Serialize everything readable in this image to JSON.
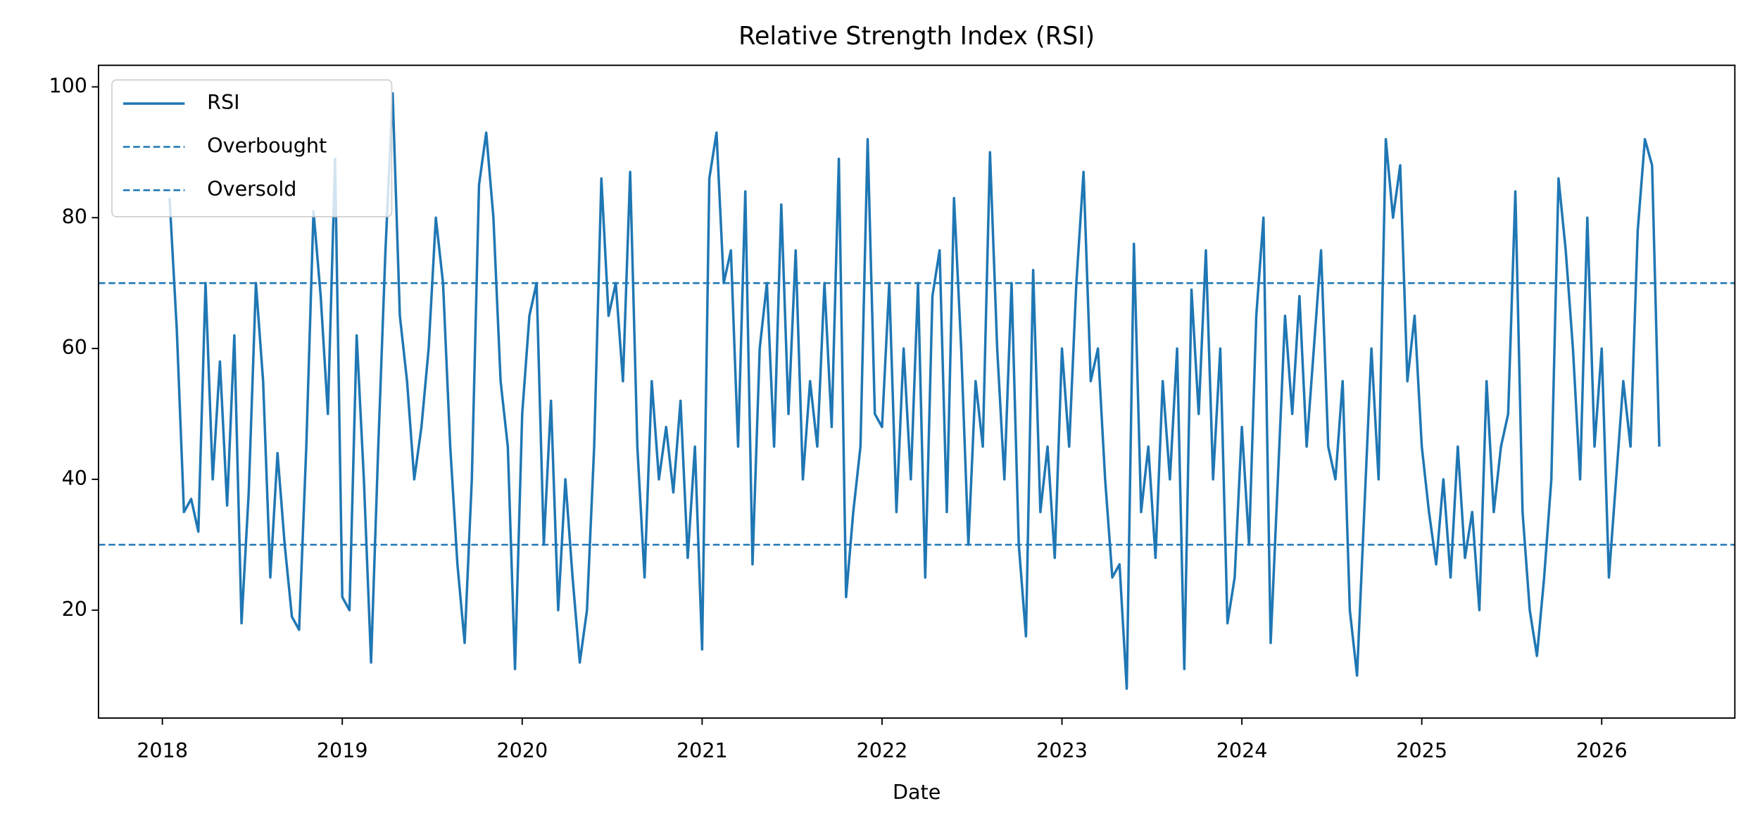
{
  "chart_data": {
    "type": "line",
    "title": "Relative Strength Index (RSI)",
    "xlabel": "Date",
    "legend": "upper left",
    "grid": false,
    "xlim": [
      2017.645,
      2026.74
    ],
    "ylim": [
      3.5,
      103.3
    ],
    "xticks": [
      2018,
      2019,
      2020,
      2021,
      2022,
      2023,
      2024,
      2025,
      2026
    ],
    "yticks": [
      20,
      40,
      60,
      80,
      100
    ],
    "hlines": [
      {
        "name": "Overbought",
        "value": 70,
        "color": "#1f77b4"
      },
      {
        "name": "Oversold",
        "value": 30,
        "color": "#1f77b4"
      }
    ],
    "x": [
      2018.04,
      2018.08,
      2018.12,
      2018.16,
      2018.2,
      2018.24,
      2018.28,
      2018.32,
      2018.36,
      2018.4,
      2018.44,
      2018.48,
      2018.52,
      2018.56,
      2018.6,
      2018.64,
      2018.68,
      2018.72,
      2018.76,
      2018.8,
      2018.84,
      2018.88,
      2018.92,
      2018.96,
      2019.0,
      2019.04,
      2019.08,
      2019.12,
      2019.16,
      2019.2,
      2019.24,
      2019.28,
      2019.32,
      2019.36,
      2019.4,
      2019.44,
      2019.48,
      2019.52,
      2019.56,
      2019.6,
      2019.64,
      2019.68,
      2019.72,
      2019.76,
      2019.8,
      2019.84,
      2019.88,
      2019.92,
      2019.96,
      2020.0,
      2020.04,
      2020.08,
      2020.12,
      2020.16,
      2020.2,
      2020.24,
      2020.28,
      2020.32,
      2020.36,
      2020.4,
      2020.44,
      2020.48,
      2020.52,
      2020.56,
      2020.6,
      2020.64,
      2020.68,
      2020.72,
      2020.76,
      2020.8,
      2020.84,
      2020.88,
      2020.92,
      2020.96,
      2021.0,
      2021.04,
      2021.08,
      2021.12,
      2021.16,
      2021.2,
      2021.24,
      2021.28,
      2021.32,
      2021.36,
      2021.4,
      2021.44,
      2021.48,
      2021.52,
      2021.56,
      2021.6,
      2021.64,
      2021.68,
      2021.72,
      2021.76,
      2021.8,
      2021.84,
      2021.88,
      2021.92,
      2021.96,
      2022.0,
      2022.04,
      2022.08,
      2022.12,
      2022.16,
      2022.2,
      2022.24,
      2022.28,
      2022.32,
      2022.36,
      2022.4,
      2022.44,
      2022.48,
      2022.52,
      2022.56,
      2022.6,
      2022.64,
      2022.68,
      2022.72,
      2022.76,
      2022.8,
      2022.84,
      2022.88,
      2022.92,
      2022.96,
      2023.0,
      2023.04,
      2023.08,
      2023.12,
      2023.16,
      2023.2,
      2023.24,
      2023.28,
      2023.32,
      2023.36,
      2023.4,
      2023.44,
      2023.48,
      2023.52,
      2023.56,
      2023.6,
      2023.64,
      2023.68,
      2023.72,
      2023.76,
      2023.8,
      2023.84,
      2023.88,
      2023.92,
      2023.96,
      2024.0,
      2024.04,
      2024.08,
      2024.12,
      2024.16,
      2024.2,
      2024.24,
      2024.28,
      2024.32,
      2024.36,
      2024.4,
      2024.44,
      2024.48,
      2024.52,
      2024.56,
      2024.6,
      2024.64,
      2024.68,
      2024.72,
      2024.76,
      2024.8,
      2024.84,
      2024.88,
      2024.92,
      2024.96,
      2025.0,
      2025.04,
      2025.08,
      2025.12,
      2025.16,
      2025.2,
      2025.24,
      2025.28,
      2025.32,
      2025.36,
      2025.4,
      2025.44,
      2025.48,
      2025.52,
      2025.56,
      2025.6,
      2025.64,
      2025.68,
      2025.72,
      2025.76,
      2025.8,
      2025.84,
      2025.88,
      2025.92,
      2025.96,
      2026.0,
      2026.04,
      2026.08,
      2026.12,
      2026.16,
      2026.2,
      2026.24,
      2026.28,
      2026.32
    ],
    "series": [
      {
        "name": "RSI",
        "color": "#1f77b4",
        "values": [
          83,
          63,
          35,
          37,
          32,
          70,
          40,
          58,
          36,
          62,
          18,
          38,
          70,
          55,
          25,
          44,
          30,
          19,
          17,
          45,
          81,
          68,
          50,
          89,
          22,
          20,
          62,
          40,
          12,
          45,
          75,
          99,
          65,
          55,
          40,
          48,
          60,
          80,
          70,
          45,
          27,
          15,
          40,
          85,
          93,
          80,
          55,
          45,
          11,
          50,
          65,
          70,
          30,
          52,
          20,
          40,
          25,
          12,
          20,
          45,
          86,
          65,
          70,
          55,
          87,
          45,
          25,
          55,
          40,
          48,
          38,
          52,
          28,
          45,
          14,
          86,
          93,
          70,
          75,
          45,
          84,
          27,
          60,
          70,
          45,
          82,
          50,
          75,
          40,
          55,
          45,
          70,
          48,
          89,
          22,
          35,
          45,
          92,
          50,
          48,
          70,
          35,
          60,
          40,
          70,
          25,
          68,
          75,
          35,
          83,
          60,
          30,
          55,
          45,
          90,
          60,
          40,
          70,
          30,
          16,
          72,
          35,
          45,
          28,
          60,
          45,
          70,
          87,
          55,
          60,
          40,
          25,
          27,
          8,
          76,
          35,
          45,
          28,
          55,
          40,
          60,
          11,
          69,
          50,
          75,
          40,
          60,
          18,
          25,
          48,
          30,
          65,
          80,
          15,
          40,
          65,
          50,
          68,
          45,
          60,
          75,
          45,
          40,
          55,
          20,
          10,
          35,
          60,
          40,
          92,
          80,
          88,
          55,
          65,
          45,
          35,
          27,
          40,
          25,
          45,
          28,
          35,
          20,
          55,
          35,
          45,
          50,
          84,
          35,
          20,
          13,
          25,
          40,
          86,
          75,
          60,
          40,
          80,
          45,
          60,
          25,
          40,
          55,
          45,
          78,
          92,
          88,
          45
        ]
      }
    ]
  }
}
